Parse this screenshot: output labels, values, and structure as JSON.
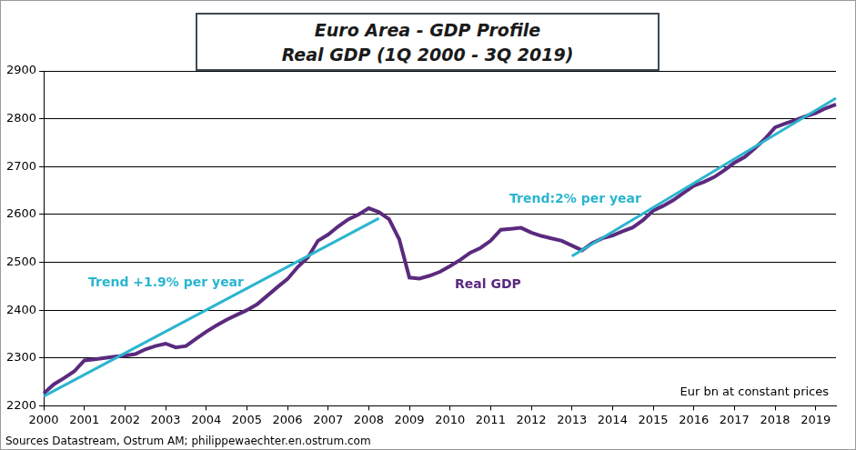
{
  "chart_data": {
    "type": "line",
    "title": [
      "Euro Area - GDP Profile",
      "Real GDP (1Q 2000 - 3Q 2019)"
    ],
    "annotations": [
      "Eur bn at constant prices"
    ],
    "source": "Sources Datastream, Ostrum AM; philippewaechter.en.ostrum.com",
    "categories": [
      "2000",
      null,
      null,
      null,
      "2001",
      null,
      null,
      null,
      "2002",
      null,
      null,
      null,
      "2003",
      null,
      null,
      null,
      "2004",
      null,
      null,
      null,
      "2005",
      null,
      null,
      null,
      "2006",
      null,
      null,
      null,
      "2007",
      null,
      null,
      null,
      "2008",
      null,
      null,
      null,
      "2009",
      null,
      null,
      null,
      "2010",
      null,
      null,
      null,
      "2011",
      null,
      null,
      null,
      "2012",
      null,
      null,
      null,
      "2013",
      null,
      null,
      null,
      "2014",
      null,
      null,
      null,
      "2015",
      null,
      null,
      null,
      "2016",
      null,
      null,
      null,
      "2017",
      null,
      null,
      null,
      "2018",
      null,
      null,
      null,
      "2019",
      null,
      null
    ],
    "series": [
      {
        "name": "Real GDP",
        "color": "#5b2a7e",
        "line_style": "solid",
        "values": [
          2226,
          2245,
          2258,
          2272,
          2295,
          2297,
          2300,
          2303,
          2305,
          2308,
          2318,
          2325,
          2330,
          2322,
          2325,
          2340,
          2355,
          2368,
          2380,
          2390,
          2400,
          2412,
          2430,
          2448,
          2465,
          2490,
          2510,
          2545,
          2558,
          2575,
          2590,
          2600,
          2613,
          2605,
          2590,
          2548,
          2468,
          2466,
          2472,
          2480,
          2492,
          2505,
          2520,
          2530,
          2545,
          2568,
          2570,
          2572,
          2562,
          2555,
          2550,
          2545,
          2535,
          2525,
          2540,
          2550,
          2556,
          2565,
          2573,
          2588,
          2608,
          2618,
          2630,
          2645,
          2660,
          2668,
          2678,
          2692,
          2708,
          2720,
          2738,
          2758,
          2782,
          2790,
          2797,
          2805,
          2812,
          2822,
          2830
        ]
      },
      {
        "name": "Trend +1.9% per year",
        "color": "#2bb5cf",
        "line_style": "solid",
        "values": [
          2220,
          null,
          null,
          null,
          null,
          null,
          null,
          null,
          null,
          null,
          null,
          null,
          null,
          null,
          null,
          null,
          null,
          null,
          null,
          null,
          null,
          null,
          null,
          null,
          null,
          null,
          null,
          null,
          null,
          null,
          null,
          null,
          null,
          2592,
          null,
          null,
          null,
          null,
          null,
          null,
          null,
          null,
          null,
          null,
          null,
          null,
          null,
          null,
          null,
          null,
          null,
          null,
          null,
          null,
          null,
          null,
          null,
          null,
          null,
          null,
          null,
          null,
          null,
          null,
          null,
          null,
          null,
          null,
          null,
          null,
          null,
          null,
          null,
          null,
          null,
          null,
          null,
          null,
          null
        ]
      },
      {
        "name": "Trend:2% per year",
        "color": "#2bb5cf",
        "line_style": "solid",
        "values": [
          null,
          null,
          null,
          null,
          null,
          null,
          null,
          null,
          null,
          null,
          null,
          null,
          null,
          null,
          null,
          null,
          null,
          null,
          null,
          null,
          null,
          null,
          null,
          null,
          null,
          null,
          null,
          null,
          null,
          null,
          null,
          null,
          null,
          null,
          null,
          null,
          null,
          null,
          null,
          null,
          null,
          null,
          null,
          null,
          null,
          null,
          null,
          null,
          null,
          null,
          null,
          null,
          2513,
          null,
          null,
          null,
          null,
          null,
          null,
          null,
          null,
          null,
          null,
          null,
          null,
          null,
          null,
          null,
          null,
          null,
          null,
          null,
          null,
          null,
          null,
          null,
          null,
          null,
          2843
        ]
      }
    ],
    "ylim": [
      2200,
      2900
    ],
    "yticks": [
      2200,
      2300,
      2400,
      2500,
      2600,
      2700,
      2800,
      2900
    ],
    "grid": true
  }
}
